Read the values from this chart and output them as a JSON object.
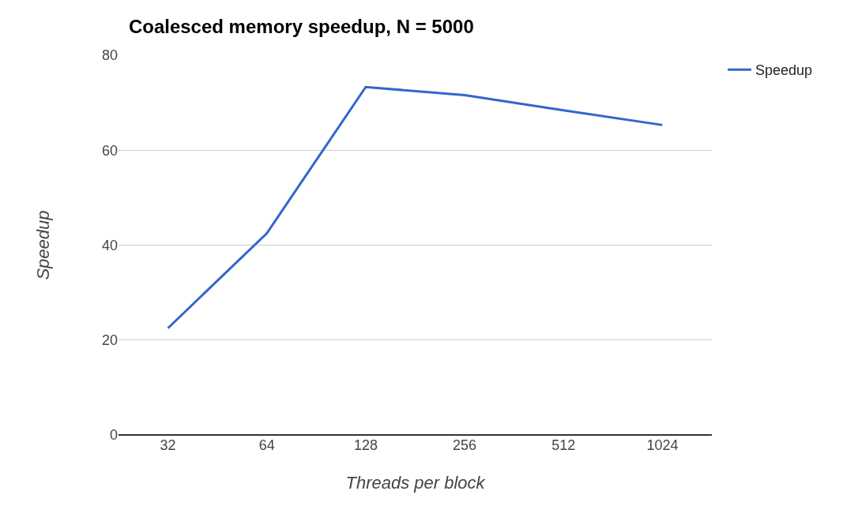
{
  "chart_data": {
    "type": "line",
    "title": "Coalesced memory speedup, N = 5000",
    "xlabel": "Threads per block",
    "ylabel": "Speedup",
    "categories": [
      "32",
      "64",
      "128",
      "256",
      "512",
      "1024"
    ],
    "series": [
      {
        "name": "Speedup",
        "color": "#3366cc",
        "values": [
          22.5,
          42.5,
          73.3,
          71.6,
          68.4,
          65.3
        ]
      }
    ],
    "ylim": [
      0,
      80
    ],
    "yticks": [
      0,
      20,
      40,
      60,
      80
    ],
    "grid": "y",
    "legend": "top right"
  }
}
